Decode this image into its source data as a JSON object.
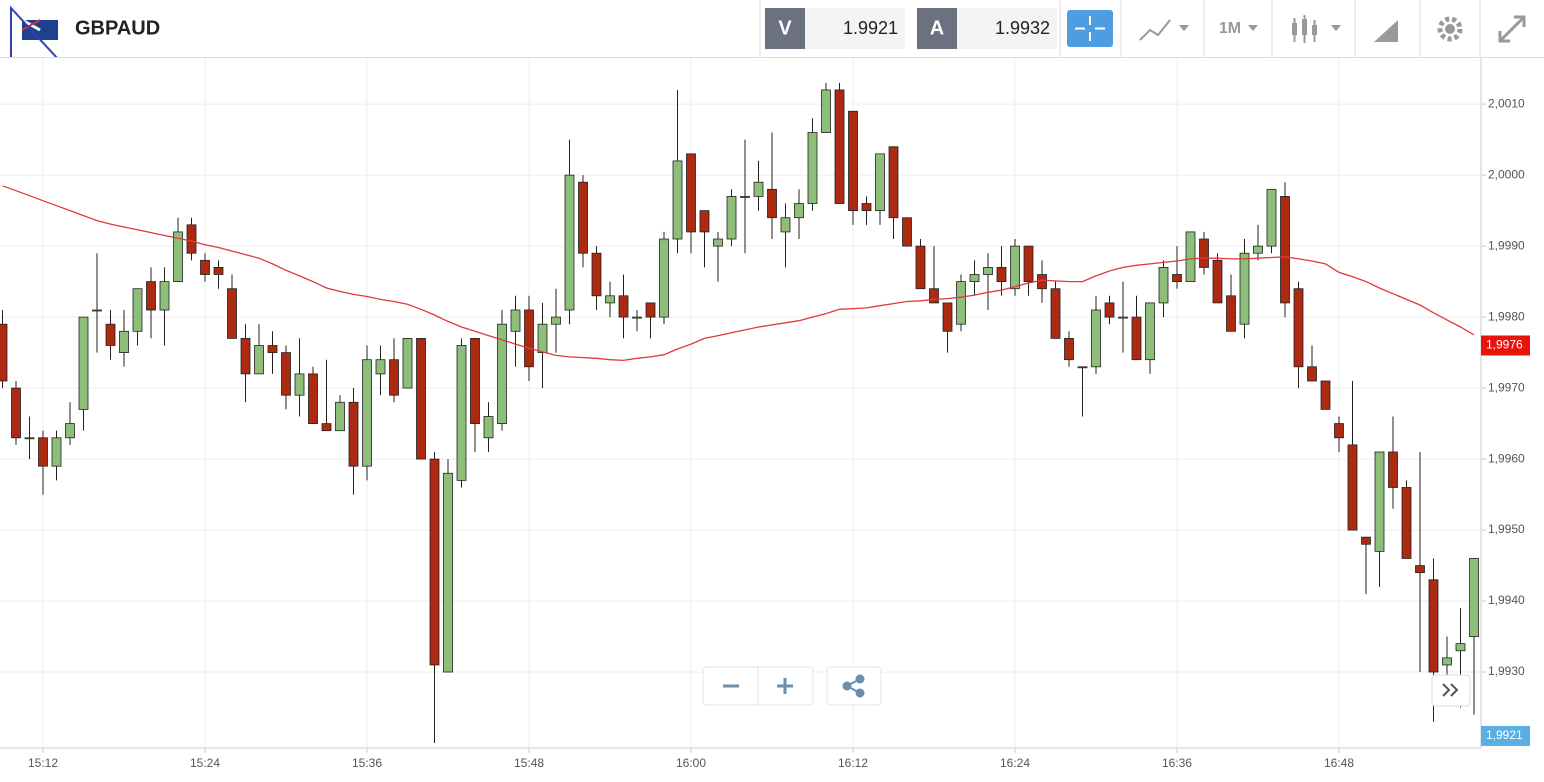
{
  "toolbar": {
    "symbol": "GBPAUD",
    "bid_label": "V",
    "bid": "1.9921",
    "ask_label": "A",
    "ask": "1.9932",
    "timeframe": "1M"
  },
  "chart_data": {
    "type": "candlestick",
    "categories": [
      null,
      null,
      null,
      "15:12",
      null,
      null,
      null,
      null,
      null,
      null,
      null,
      null,
      null,
      null,
      null,
      "15:24",
      null,
      null,
      null,
      null,
      null,
      null,
      null,
      null,
      null,
      null,
      null,
      "15:36",
      null,
      null,
      null,
      null,
      null,
      null,
      null,
      null,
      null,
      null,
      null,
      "15:48",
      null,
      null,
      null,
      null,
      null,
      null,
      null,
      null,
      null,
      null,
      null,
      "16:00",
      null,
      null,
      null,
      null,
      null,
      null,
      null,
      null,
      null,
      null,
      null,
      "16:12",
      null,
      null,
      null,
      null,
      null,
      null,
      null,
      null,
      null,
      null,
      null,
      "16:24",
      null,
      null,
      null,
      null,
      null,
      null,
      null,
      null,
      null,
      null,
      null,
      "16:36",
      null,
      null,
      null,
      null,
      null,
      null,
      null,
      null,
      null,
      null,
      null,
      "16:48",
      null,
      null,
      null,
      null,
      null,
      null,
      null,
      null,
      null,
      null
    ],
    "open": [
      1.9979,
      1.997,
      1.9963,
      1.9963,
      1.9959,
      1.9963,
      1.9967,
      1.9981,
      1.9979,
      1.9975,
      1.9978,
      1.9985,
      1.9981,
      1.9985,
      1.9993,
      1.9988,
      1.9987,
      1.9984,
      1.9977,
      1.9972,
      1.9976,
      1.9975,
      1.9969,
      1.9972,
      1.9965,
      1.9964,
      1.9968,
      1.9959,
      1.9972,
      1.9974,
      1.997,
      1.9977,
      1.996,
      1.993,
      1.9957,
      1.9977,
      1.9963,
      1.9965,
      1.9978,
      1.9981,
      1.9975,
      1.9979,
      1.9981,
      1.9999,
      1.9989,
      1.9982,
      1.9983,
      1.998,
      1.9982,
      1.998,
      1.9991,
      2.0003,
      1.9995,
      1.999,
      1.9991,
      1.9997,
      1.9997,
      1.9998,
      1.9992,
      1.9994,
      1.9996,
      2.0006,
      2.0012,
      2.0009,
      1.9996,
      1.9995,
      2.0004,
      1.9994,
      1.999,
      1.9984,
      1.9982,
      1.9979,
      1.9985,
      1.9986,
      1.9987,
      1.9984,
      1.999,
      1.9986,
      1.9984,
      1.9977,
      1.9973,
      1.9973,
      1.9982,
      1.998,
      1.998,
      1.9974,
      1.9982,
      1.9986,
      1.9985,
      1.9991,
      1.9988,
      1.9983,
      1.9979,
      1.9989,
      1.999,
      1.9997,
      1.9984,
      1.9973,
      1.9971,
      1.9965,
      1.9962,
      1.9949,
      1.9947,
      1.9961,
      1.9956,
      1.9945,
      1.9943,
      1.9931,
      1.9933,
      1.9935
    ],
    "high": [
      1.9981,
      1.9971,
      1.9966,
      1.9964,
      1.9964,
      1.9968,
      1.998,
      1.9989,
      1.9981,
      1.9981,
      1.9984,
      1.9987,
      1.9987,
      1.9994,
      1.9994,
      1.9989,
      1.9988,
      1.9986,
      1.9979,
      1.9979,
      1.9978,
      1.9976,
      1.9977,
      1.9973,
      1.9974,
      1.9969,
      1.997,
      1.9976,
      1.9976,
      1.9977,
      1.9977,
      1.9977,
      1.9961,
      1.996,
      1.9977,
      1.9977,
      1.9968,
      1.9981,
      1.9983,
      1.9983,
      1.9982,
      1.9984,
      2.0005,
      2.0,
      1.999,
      1.9985,
      1.9986,
      1.9981,
      1.9982,
      1.9992,
      2.0012,
      2.0003,
      1.9995,
      1.9992,
      1.9998,
      2.0005,
      2.0002,
      2.0006,
      1.9996,
      1.9998,
      2.0008,
      2.0013,
      2.0013,
      2.0009,
      1.9997,
      2.0003,
      2.0004,
      1.9994,
      1.9991,
      1.999,
      1.9982,
      1.9986,
      1.9988,
      1.9989,
      1.999,
      1.9991,
      1.999,
      1.9988,
      1.9985,
      1.9978,
      1.9973,
      1.9983,
      1.9983,
      1.9985,
      1.9983,
      1.9982,
      1.9988,
      1.999,
      1.9992,
      1.9992,
      1.9989,
      1.9986,
      1.9991,
      1.9993,
      1.9998,
      1.9999,
      1.9985,
      1.9976,
      1.9971,
      1.9966,
      1.9971,
      1.9949,
      1.9961,
      1.9966,
      1.9957,
      1.9961,
      1.9946,
      1.9935,
      1.9939,
      1.9946
    ],
    "low": [
      1.997,
      1.9962,
      1.996,
      1.9955,
      1.9957,
      1.9962,
      1.9964,
      1.9975,
      1.9974,
      1.9973,
      1.9976,
      1.9977,
      1.9976,
      1.9985,
      1.9988,
      1.9985,
      1.9984,
      1.9977,
      1.9968,
      1.9972,
      1.9972,
      1.9967,
      1.9966,
      1.9965,
      1.9964,
      1.9964,
      1.9955,
      1.9957,
      1.9969,
      1.9968,
      1.997,
      1.996,
      1.992,
      1.993,
      1.9956,
      1.9961,
      1.9961,
      1.9964,
      1.9973,
      1.9971,
      1.997,
      1.9975,
      1.9979,
      1.9987,
      1.9981,
      1.998,
      1.9977,
      1.9978,
      1.9977,
      1.9979,
      1.9989,
      1.9989,
      1.9987,
      1.9985,
      1.999,
      1.9989,
      1.9995,
      1.9991,
      1.9987,
      1.9991,
      1.9995,
      2.0006,
      1.9996,
      1.9993,
      1.9993,
      1.9993,
      1.9991,
      1.999,
      1.9984,
      1.9982,
      1.9975,
      1.9978,
      1.9983,
      1.9981,
      1.9983,
      1.9983,
      1.9983,
      1.9982,
      1.9977,
      1.9973,
      1.9966,
      1.9972,
      1.9979,
      1.9975,
      1.9974,
      1.9972,
      1.998,
      1.9984,
      1.9985,
      1.9986,
      1.9982,
      1.9978,
      1.9977,
      1.9988,
      1.9989,
      1.998,
      1.997,
      1.9971,
      1.9967,
      1.9961,
      1.995,
      1.9941,
      1.9942,
      1.9953,
      1.9946,
      1.993,
      1.9923,
      1.9929,
      1.9925,
      1.9924
    ],
    "close": [
      1.9971,
      1.9963,
      1.9963,
      1.9959,
      1.9963,
      1.9965,
      1.998,
      1.9981,
      1.9976,
      1.9978,
      1.9984,
      1.9981,
      1.9985,
      1.9992,
      1.9989,
      1.9986,
      1.9986,
      1.9977,
      1.9972,
      1.9976,
      1.9975,
      1.9969,
      1.9972,
      1.9965,
      1.9964,
      1.9968,
      1.9959,
      1.9974,
      1.9974,
      1.9969,
      1.9977,
      1.996,
      1.9931,
      1.9958,
      1.9976,
      1.9965,
      1.9966,
      1.9979,
      1.9981,
      1.9973,
      1.9979,
      1.998,
      2.0,
      1.9989,
      1.9983,
      1.9983,
      1.998,
      1.998,
      1.998,
      1.9991,
      2.0002,
      1.9992,
      1.9992,
      1.9991,
      1.9997,
      1.9997,
      1.9999,
      1.9994,
      1.9994,
      1.9996,
      2.0006,
      2.0012,
      1.9996,
      1.9995,
      1.9995,
      2.0003,
      1.9994,
      1.999,
      1.9984,
      1.9982,
      1.9978,
      1.9985,
      1.9986,
      1.9987,
      1.9985,
      1.999,
      1.9985,
      1.9984,
      1.9977,
      1.9974,
      1.9973,
      1.9981,
      1.998,
      1.998,
      1.9974,
      1.9982,
      1.9987,
      1.9985,
      1.9992,
      1.9987,
      1.9982,
      1.9978,
      1.9989,
      1.999,
      1.9998,
      1.9982,
      1.9973,
      1.9971,
      1.9967,
      1.9963,
      1.995,
      1.9948,
      1.9961,
      1.9956,
      1.9946,
      1.9944,
      1.993,
      1.9932,
      1.9934,
      1.9946
    ],
    "up_color": "#8dbf7a",
    "down_color": "#ad2a12",
    "moving_average": {
      "color": "#e03a3a",
      "values": [
        1.99985,
        1.99978,
        1.99971,
        1.99964,
        1.99957,
        1.9995,
        1.99943,
        1.99936,
        1.99931,
        1.99927,
        1.99923,
        1.99919,
        1.99915,
        1.99911,
        1.99907,
        1.99902,
        1.99898,
        1.99893,
        1.99888,
        1.99883,
        1.99875,
        1.99866,
        1.99858,
        1.9985,
        1.99841,
        1.99836,
        1.99832,
        1.99829,
        1.99825,
        1.99822,
        1.99818,
        1.99811,
        1.99803,
        1.99794,
        1.99786,
        1.9978,
        1.99774,
        1.99768,
        1.99762,
        1.99756,
        1.99751,
        1.99746,
        1.99744,
        1.99743,
        1.99742,
        1.9974,
        1.99739,
        1.99742,
        1.99744,
        1.99747,
        1.99755,
        1.99762,
        1.9977,
        1.99774,
        1.99778,
        1.99782,
        1.99786,
        1.99789,
        1.99792,
        1.99795,
        1.998,
        1.99805,
        1.99811,
        1.99812,
        1.99813,
        1.99816,
        1.99819,
        1.99822,
        1.99823,
        1.99825,
        1.99826,
        1.99828,
        1.99831,
        1.99835,
        1.99838,
        1.99843,
        1.99848,
        1.99852,
        1.99851,
        1.9985,
        1.9985,
        1.99858,
        1.99865,
        1.9987,
        1.99873,
        1.99875,
        1.99877,
        1.99879,
        1.99882,
        1.99883,
        1.99883,
        1.99882,
        1.99882,
        1.99883,
        1.99884,
        1.99885,
        1.99882,
        1.99879,
        1.99875,
        1.99863,
        1.99857,
        1.9985,
        1.99841,
        1.99833,
        1.99825,
        1.99817,
        1.99806,
        1.99796,
        1.99786,
        1.99775
      ]
    },
    "ylim": [
      1.99193,
      2.00165
    ],
    "yticks": [
      {
        "value": 2.001,
        "label": "2,0010"
      },
      {
        "value": 2.0,
        "label": "2,0000"
      },
      {
        "value": 1.999,
        "label": "1,9990"
      },
      {
        "value": 1.998,
        "label": "1,9980"
      },
      {
        "value": 1.997,
        "label": "1,9970"
      },
      {
        "value": 1.996,
        "label": "1,9960"
      },
      {
        "value": 1.995,
        "label": "1,9950"
      },
      {
        "value": 1.994,
        "label": "1,9940"
      },
      {
        "value": 1.993,
        "label": "1,9930"
      }
    ],
    "grid": true,
    "price_markers": [
      {
        "value": 1.9976,
        "label": "1,9976",
        "color": "#e8140c"
      },
      {
        "value": 1.9921,
        "label": "1,9921",
        "color": "#5aafe3"
      }
    ]
  }
}
